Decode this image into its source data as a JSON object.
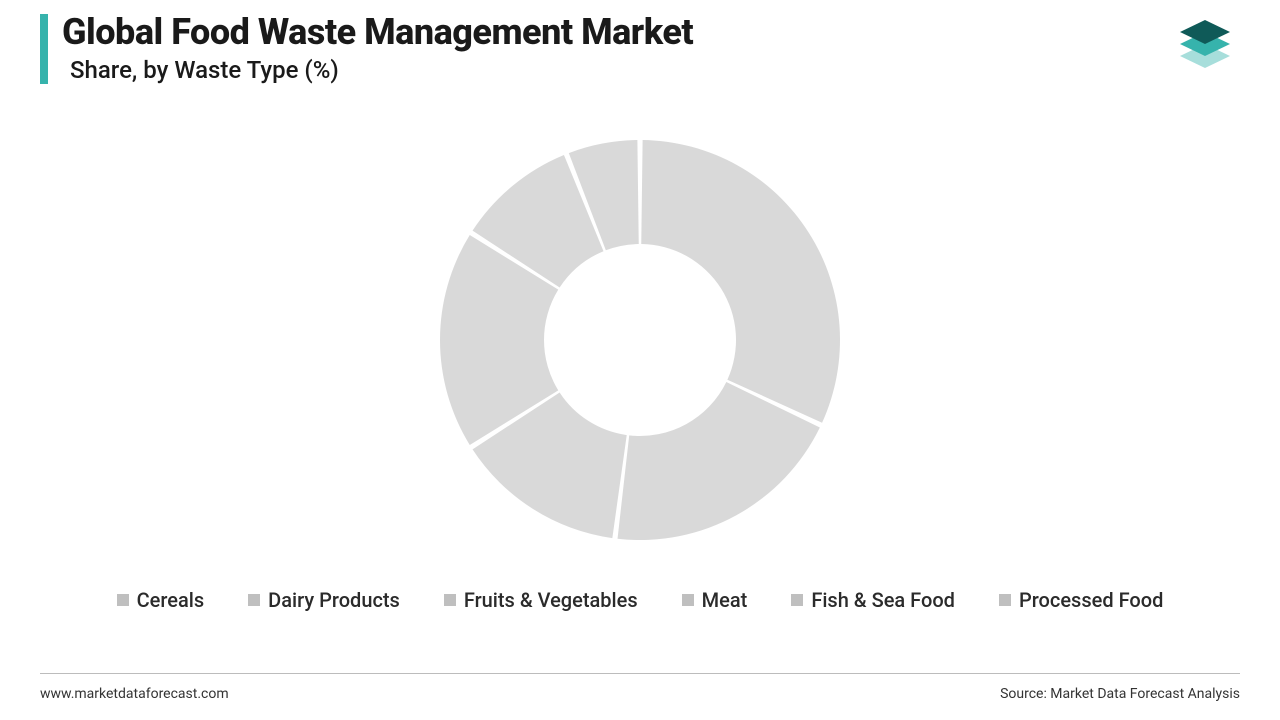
{
  "header": {
    "title": "Global Food Waste Management Market",
    "subtitle": "Share, by Waste Type (%)",
    "accent_color": "#36b3ac"
  },
  "logo": {
    "top_color": "#0f5a58",
    "mid_color": "#36b3ac",
    "bot_color": "#a7dedb"
  },
  "chart": {
    "type": "donut",
    "inner_radius_pct": 0.48,
    "gap_deg": 1.5,
    "slice_color": "#d9d9d9",
    "gap_color": "#ffffff",
    "background_color": "#ffffff",
    "segments": [
      {
        "label": "Cereals",
        "value": 32
      },
      {
        "label": "Dairy Products",
        "value": 20
      },
      {
        "label": "Fruits & Vegetables",
        "value": 14
      },
      {
        "label": "Meat",
        "value": 18
      },
      {
        "label": "Fish & Sea Food",
        "value": 10
      },
      {
        "label": "Processed Food",
        "value": 6
      }
    ]
  },
  "legend": {
    "swatch_color": "#bfbfbf",
    "text_color": "#2b2b2b",
    "items": [
      {
        "label": "Cereals"
      },
      {
        "label": "Dairy Products"
      },
      {
        "label": "Fruits & Vegetables"
      },
      {
        "label": "Meat"
      },
      {
        "label": "Fish & Sea Food"
      },
      {
        "label": "Processed Food"
      }
    ]
  },
  "footer": {
    "left": "www.marketdataforecast.com",
    "right": "Source: Market Data Forecast Analysis",
    "rule_color": "#bcbcbc",
    "text_color": "#333333"
  }
}
